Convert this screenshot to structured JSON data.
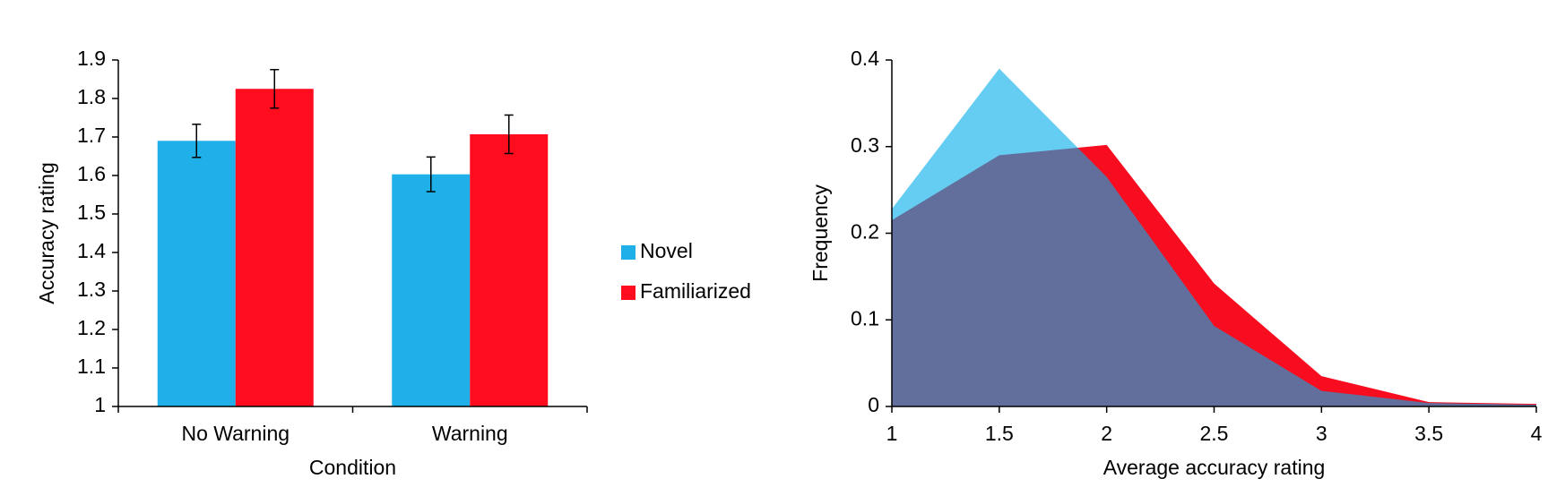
{
  "chart_data": [
    {
      "type": "bar",
      "xlabel": "Condition",
      "ylabel": "Accuracy rating",
      "categories": [
        "No Warning",
        "Warning"
      ],
      "series": [
        {
          "name": "Novel",
          "color": "#1fb0ea",
          "values": [
            1.69,
            1.603
          ],
          "errors": [
            0.043,
            0.045
          ]
        },
        {
          "name": "Familiarized",
          "color": "#ff0d1f",
          "values": [
            1.825,
            1.707
          ],
          "errors": [
            0.05,
            0.05
          ]
        }
      ],
      "ylim": [
        1,
        1.9
      ],
      "yticks": [
        1,
        1.1,
        1.2,
        1.3,
        1.4,
        1.5,
        1.6,
        1.7,
        1.8,
        1.9
      ],
      "legend": "right"
    },
    {
      "type": "area",
      "xlabel": "Average accuracy rating",
      "ylabel": "Frequency",
      "x": [
        1,
        1.5,
        2,
        2.5,
        3,
        3.5,
        4
      ],
      "series": [
        {
          "color": "#f70d1f",
          "opacity": 1,
          "values": [
            0.215,
            0.29,
            0.302,
            0.142,
            0.035,
            0.005,
            0.003
          ]
        },
        {
          "color": "#06acea",
          "opacity": 0.62,
          "values": [
            0.228,
            0.39,
            0.265,
            0.093,
            0.018,
            0.004,
            0.002
          ]
        }
      ],
      "xlim": [
        1,
        4
      ],
      "xticks": [
        1,
        1.5,
        2,
        2.5,
        3,
        3.5,
        4
      ],
      "ylim": [
        0,
        0.4
      ],
      "yticks": [
        0,
        0.1,
        0.2,
        0.3,
        0.4
      ]
    }
  ]
}
